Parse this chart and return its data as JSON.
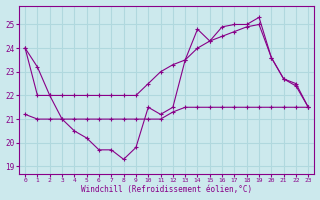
{
  "xlabel": "Windchill (Refroidissement éolien,°C)",
  "background_color": "#cce9ed",
  "plot_bg_color": "#cce9ed",
  "grid_color": "#b0d8de",
  "line_color": "#880088",
  "x_ticks": [
    0,
    1,
    2,
    3,
    4,
    5,
    6,
    7,
    8,
    9,
    10,
    11,
    12,
    13,
    14,
    15,
    16,
    17,
    18,
    19,
    20,
    21,
    22,
    23
  ],
  "y_ticks": [
    19,
    20,
    21,
    22,
    23,
    24,
    25
  ],
  "ylim": [
    18.7,
    25.8
  ],
  "xlim": [
    -0.5,
    23.5
  ],
  "series": [
    {
      "x": [
        0,
        1,
        2,
        3,
        4,
        5,
        6,
        7,
        8,
        9,
        10,
        11,
        12,
        13,
        14,
        15,
        16,
        17,
        18,
        19,
        20,
        21,
        22,
        23
      ],
      "y": [
        24.0,
        23.2,
        22.0,
        22.0,
        22.0,
        22.0,
        22.0,
        22.0,
        22.0,
        22.0,
        22.5,
        23.0,
        23.3,
        23.5,
        24.0,
        24.3,
        24.5,
        24.7,
        24.9,
        25.0,
        23.6,
        22.7,
        22.4,
        21.5
      ]
    },
    {
      "x": [
        0,
        1,
        2,
        3,
        4,
        5,
        6,
        7,
        8,
        9,
        10,
        11,
        12,
        13,
        14,
        15,
        16,
        17,
        18,
        19,
        20,
        21,
        22,
        23
      ],
      "y": [
        24.0,
        22.0,
        22.0,
        21.0,
        20.5,
        20.2,
        19.7,
        19.7,
        19.3,
        19.8,
        21.5,
        21.2,
        21.5,
        23.5,
        24.8,
        24.3,
        24.9,
        25.0,
        25.0,
        25.3,
        23.6,
        22.7,
        22.5,
        21.5
      ]
    },
    {
      "x": [
        0,
        1,
        2,
        3,
        4,
        5,
        6,
        7,
        8,
        9,
        10,
        11,
        12,
        13,
        14,
        15,
        16,
        17,
        18,
        19,
        20,
        21,
        22,
        23
      ],
      "y": [
        21.2,
        21.0,
        21.0,
        21.0,
        21.0,
        21.0,
        21.0,
        21.0,
        21.0,
        21.0,
        21.0,
        21.0,
        21.3,
        21.5,
        21.5,
        21.5,
        21.5,
        21.5,
        21.5,
        21.5,
        21.5,
        21.5,
        21.5,
        21.5
      ]
    }
  ]
}
